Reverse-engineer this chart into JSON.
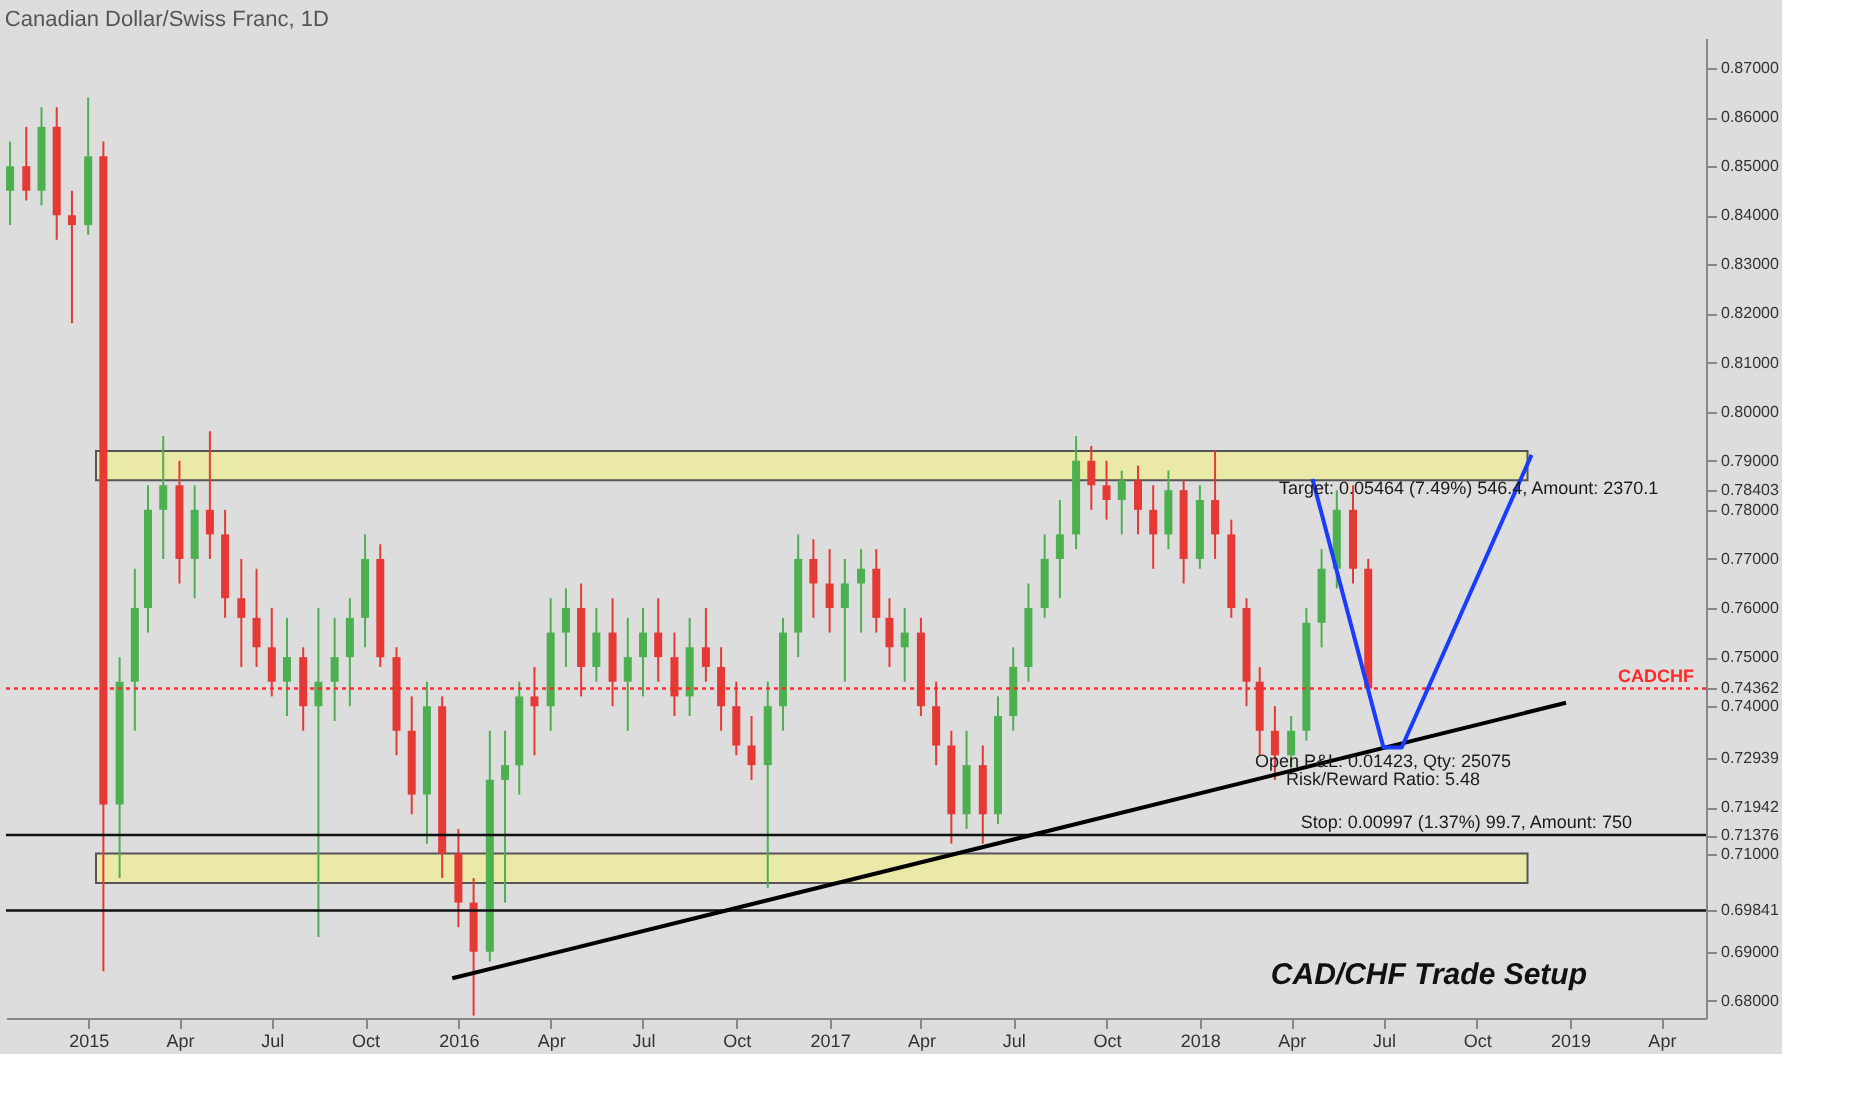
{
  "chart_data": {
    "type": "candlestick",
    "title": "Canadian Dollar/Swiss Franc, 1D",
    "x": [
      "2014-10-16",
      "2014-11-01",
      "2014-11-16",
      "2014-12-01",
      "2014-12-16",
      "2015-01-01",
      "2015-01-16",
      "2015-02-01",
      "2015-02-16",
      "2015-03-01",
      "2015-03-16",
      "2015-04-01",
      "2015-04-16",
      "2015-05-01",
      "2015-05-16",
      "2015-06-01",
      "2015-06-16",
      "2015-07-01",
      "2015-07-16",
      "2015-08-01",
      "2015-08-16",
      "2015-09-01",
      "2015-09-16",
      "2015-10-01",
      "2015-10-16",
      "2015-11-01",
      "2015-11-16",
      "2015-12-01",
      "2015-12-16",
      "2016-01-01",
      "2016-01-16",
      "2016-02-01",
      "2016-02-16",
      "2016-03-01",
      "2016-03-16",
      "2016-04-01",
      "2016-04-16",
      "2016-05-01",
      "2016-05-16",
      "2016-06-01",
      "2016-06-16",
      "2016-07-01",
      "2016-07-16",
      "2016-08-01",
      "2016-08-16",
      "2016-09-01",
      "2016-09-16",
      "2016-10-01",
      "2016-10-16",
      "2016-11-01",
      "2016-11-16",
      "2016-12-01",
      "2016-12-16",
      "2017-01-01",
      "2017-01-16",
      "2017-02-01",
      "2017-02-16",
      "2017-03-01",
      "2017-03-16",
      "2017-04-01",
      "2017-04-16",
      "2017-05-01",
      "2017-05-16",
      "2017-06-01",
      "2017-06-16",
      "2017-07-01",
      "2017-07-16",
      "2017-08-01",
      "2017-08-16",
      "2017-09-01",
      "2017-09-16",
      "2017-10-01",
      "2017-10-16",
      "2017-11-01",
      "2017-11-16",
      "2017-12-01",
      "2017-12-16",
      "2018-01-01",
      "2018-01-16",
      "2018-02-01",
      "2018-02-16",
      "2018-03-01",
      "2018-03-16",
      "2018-04-01",
      "2018-04-16",
      "2018-05-01",
      "2018-05-16",
      "2018-06-01",
      "2018-06-16"
    ],
    "ohlc": [
      [
        0.845,
        0.855,
        0.838,
        0.85
      ],
      [
        0.85,
        0.858,
        0.843,
        0.845
      ],
      [
        0.845,
        0.862,
        0.842,
        0.858
      ],
      [
        0.858,
        0.862,
        0.835,
        0.84
      ],
      [
        0.84,
        0.845,
        0.818,
        0.838
      ],
      [
        0.838,
        0.864,
        0.836,
        0.852
      ],
      [
        0.852,
        0.855,
        0.686,
        0.72
      ],
      [
        0.72,
        0.75,
        0.705,
        0.745
      ],
      [
        0.745,
        0.768,
        0.735,
        0.76
      ],
      [
        0.76,
        0.785,
        0.755,
        0.78
      ],
      [
        0.78,
        0.795,
        0.77,
        0.785
      ],
      [
        0.785,
        0.79,
        0.765,
        0.77
      ],
      [
        0.77,
        0.785,
        0.762,
        0.78
      ],
      [
        0.78,
        0.796,
        0.77,
        0.775
      ],
      [
        0.775,
        0.78,
        0.758,
        0.762
      ],
      [
        0.762,
        0.77,
        0.748,
        0.758
      ],
      [
        0.758,
        0.768,
        0.748,
        0.752
      ],
      [
        0.752,
        0.76,
        0.742,
        0.745
      ],
      [
        0.745,
        0.758,
        0.738,
        0.75
      ],
      [
        0.75,
        0.752,
        0.735,
        0.74
      ],
      [
        0.74,
        0.76,
        0.693,
        0.745
      ],
      [
        0.745,
        0.758,
        0.737,
        0.75
      ],
      [
        0.75,
        0.762,
        0.74,
        0.758
      ],
      [
        0.758,
        0.775,
        0.752,
        0.77
      ],
      [
        0.77,
        0.773,
        0.748,
        0.75
      ],
      [
        0.75,
        0.752,
        0.73,
        0.735
      ],
      [
        0.735,
        0.742,
        0.718,
        0.722
      ],
      [
        0.722,
        0.745,
        0.712,
        0.74
      ],
      [
        0.74,
        0.742,
        0.705,
        0.71
      ],
      [
        0.71,
        0.715,
        0.695,
        0.7
      ],
      [
        0.7,
        0.705,
        0.677,
        0.69
      ],
      [
        0.69,
        0.735,
        0.688,
        0.725
      ],
      [
        0.725,
        0.735,
        0.7,
        0.728
      ],
      [
        0.728,
        0.745,
        0.722,
        0.742
      ],
      [
        0.742,
        0.748,
        0.73,
        0.74
      ],
      [
        0.74,
        0.762,
        0.735,
        0.755
      ],
      [
        0.755,
        0.764,
        0.748,
        0.76
      ],
      [
        0.76,
        0.765,
        0.742,
        0.748
      ],
      [
        0.748,
        0.76,
        0.745,
        0.755
      ],
      [
        0.755,
        0.762,
        0.74,
        0.745
      ],
      [
        0.745,
        0.758,
        0.735,
        0.75
      ],
      [
        0.75,
        0.76,
        0.742,
        0.755
      ],
      [
        0.755,
        0.762,
        0.745,
        0.75
      ],
      [
        0.75,
        0.755,
        0.738,
        0.742
      ],
      [
        0.742,
        0.758,
        0.738,
        0.752
      ],
      [
        0.752,
        0.76,
        0.745,
        0.748
      ],
      [
        0.748,
        0.752,
        0.735,
        0.74
      ],
      [
        0.74,
        0.745,
        0.73,
        0.732
      ],
      [
        0.732,
        0.738,
        0.725,
        0.728
      ],
      [
        0.728,
        0.745,
        0.703,
        0.74
      ],
      [
        0.74,
        0.758,
        0.735,
        0.755
      ],
      [
        0.755,
        0.775,
        0.75,
        0.77
      ],
      [
        0.77,
        0.774,
        0.758,
        0.765
      ],
      [
        0.765,
        0.772,
        0.755,
        0.76
      ],
      [
        0.76,
        0.77,
        0.745,
        0.765
      ],
      [
        0.765,
        0.772,
        0.755,
        0.768
      ],
      [
        0.768,
        0.772,
        0.755,
        0.758
      ],
      [
        0.758,
        0.762,
        0.748,
        0.752
      ],
      [
        0.752,
        0.76,
        0.745,
        0.755
      ],
      [
        0.755,
        0.758,
        0.738,
        0.74
      ],
      [
        0.74,
        0.745,
        0.728,
        0.732
      ],
      [
        0.732,
        0.735,
        0.712,
        0.718
      ],
      [
        0.718,
        0.735,
        0.715,
        0.728
      ],
      [
        0.728,
        0.732,
        0.712,
        0.718
      ],
      [
        0.718,
        0.742,
        0.716,
        0.738
      ],
      [
        0.738,
        0.752,
        0.735,
        0.748
      ],
      [
        0.748,
        0.765,
        0.745,
        0.76
      ],
      [
        0.76,
        0.775,
        0.758,
        0.77
      ],
      [
        0.77,
        0.782,
        0.762,
        0.775
      ],
      [
        0.775,
        0.795,
        0.772,
        0.79
      ],
      [
        0.79,
        0.793,
        0.78,
        0.785
      ],
      [
        0.785,
        0.79,
        0.778,
        0.782
      ],
      [
        0.782,
        0.788,
        0.775,
        0.786
      ],
      [
        0.786,
        0.789,
        0.775,
        0.78
      ],
      [
        0.78,
        0.785,
        0.768,
        0.775
      ],
      [
        0.775,
        0.788,
        0.772,
        0.784
      ],
      [
        0.784,
        0.786,
        0.765,
        0.77
      ],
      [
        0.77,
        0.785,
        0.768,
        0.782
      ],
      [
        0.782,
        0.792,
        0.77,
        0.775
      ],
      [
        0.775,
        0.778,
        0.758,
        0.76
      ],
      [
        0.76,
        0.762,
        0.74,
        0.745
      ],
      [
        0.745,
        0.748,
        0.73,
        0.735
      ],
      [
        0.735,
        0.74,
        0.725,
        0.73
      ],
      [
        0.73,
        0.738,
        0.726,
        0.735
      ],
      [
        0.735,
        0.76,
        0.733,
        0.757
      ],
      [
        0.757,
        0.772,
        0.752,
        0.768
      ],
      [
        0.768,
        0.784,
        0.764,
        0.78
      ],
      [
        0.78,
        0.785,
        0.765,
        0.768
      ],
      [
        0.768,
        0.77,
        0.743,
        0.74362
      ]
    ],
    "colors": [
      "#4caf50",
      "#e53935",
      "#4caf50",
      "#e53935",
      "#e53935",
      "#4caf50",
      "#e53935",
      "#4caf50",
      "#4caf50",
      "#4caf50",
      "#4caf50",
      "#e53935",
      "#4caf50",
      "#e53935",
      "#e53935",
      "#e53935",
      "#e53935",
      "#e53935",
      "#4caf50",
      "#e53935",
      "#4caf50",
      "#4caf50",
      "#4caf50",
      "#4caf50",
      "#e53935",
      "#e53935",
      "#e53935",
      "#4caf50",
      "#e53935",
      "#e53935",
      "#e53935",
      "#4caf50",
      "#4caf50",
      "#4caf50",
      "#e53935",
      "#4caf50",
      "#4caf50",
      "#e53935",
      "#4caf50",
      "#e53935",
      "#4caf50",
      "#4caf50",
      "#e53935",
      "#e53935",
      "#4caf50",
      "#e53935",
      "#e53935",
      "#e53935",
      "#e53935",
      "#4caf50",
      "#4caf50",
      "#4caf50",
      "#e53935",
      "#e53935",
      "#4caf50",
      "#4caf50",
      "#e53935",
      "#e53935",
      "#4caf50",
      "#e53935",
      "#e53935",
      "#e53935",
      "#4caf50",
      "#e53935",
      "#4caf50",
      "#4caf50",
      "#4caf50",
      "#4caf50",
      "#4caf50",
      "#4caf50",
      "#e53935",
      "#e53935",
      "#4caf50",
      "#e53935",
      "#e53935",
      "#4caf50",
      "#e53935",
      "#4caf50",
      "#e53935",
      "#e53935",
      "#e53935",
      "#e53935",
      "#e53935",
      "#4caf50",
      "#4caf50",
      "#4caf50",
      "#4caf50",
      "#e53935",
      "#e53935"
    ],
    "series": [
      {
        "type": "line",
        "color": "#000000",
        "x": [
          "2015-12-26",
          "2018-12-28"
        ],
        "values": [
          0.6846,
          0.7407
        ]
      },
      {
        "type": "line",
        "color": "#1a3cff",
        "x": [
          "2018-04-22",
          "2018-07-01",
          "2018-07-19",
          "2018-11-24"
        ],
        "values": [
          0.7863,
          0.7316,
          0.7316,
          0.7912
        ]
      }
    ],
    "bands": [
      {
        "axis": "y",
        "from": 0.786,
        "to": 0.792,
        "color": "#ebe9a8"
      },
      {
        "axis": "y",
        "from": 0.704,
        "to": 0.71,
        "color": "#ebe9a8"
      }
    ],
    "ref_lines": [
      {
        "axis": "y",
        "value": 0.74362,
        "label": "CADCHF",
        "color": "#ff2a2a",
        "line_style": "dotted"
      },
      {
        "axis": "y",
        "value": 0.71376,
        "color": "#111111",
        "line_style": "solid"
      },
      {
        "axis": "y",
        "value": 0.69841,
        "color": "#111111",
        "line_style": "solid"
      }
    ],
    "annotations": [
      {
        "text": "Target: 0.05464 (7.49%) 546.4, Amount: 2370.1",
        "x": "2018-09-23",
        "y": 0.7845
      },
      "Open P&L: 0.01423, Qty: 25075",
      "Risk/Reward Ratio: 5.48",
      "Stop: 0.00997 (1.37%) 99.7, Amount: 750",
      "CAD/CHF Trade Setup"
    ],
    "xlim": [
      "2014-10-12",
      "2019-05-15"
    ],
    "xticks": [
      {
        "value": "2015-01-01",
        "label": "2015"
      },
      {
        "value": "2015-04-01",
        "label": "Apr"
      },
      {
        "value": "2015-07-01",
        "label": "Jul"
      },
      {
        "value": "2015-10-01",
        "label": "Oct"
      },
      {
        "value": "2016-01-01",
        "label": "2016"
      },
      {
        "value": "2016-04-01",
        "label": "Apr"
      },
      {
        "value": "2016-07-01",
        "label": "Jul"
      },
      {
        "value": "2016-10-01",
        "label": "Oct"
      },
      {
        "value": "2017-01-01",
        "label": "2017"
      },
      {
        "value": "2017-04-01",
        "label": "Apr"
      },
      {
        "value": "2017-07-01",
        "label": "Jul"
      },
      {
        "value": "2017-10-01",
        "label": "Oct"
      },
      {
        "value": "2018-01-01",
        "label": "2018"
      },
      {
        "value": "2018-04-01",
        "label": "Apr"
      },
      {
        "value": "2018-07-01",
        "label": "Jul"
      },
      {
        "value": "2018-10-01",
        "label": "Oct"
      },
      {
        "value": "2019-01-01",
        "label": "2019"
      },
      {
        "value": "2019-04-01",
        "label": "Apr"
      }
    ],
    "ylim": [
      0.6765,
      0.8761
    ],
    "yticks": [
      {
        "value": 0.68,
        "label": "0.68000"
      },
      {
        "value": 0.69,
        "label": "0.69000"
      },
      0.69841,
      {
        "value": 0.71,
        "label": "0.71000"
      },
      0.71376,
      0.71942,
      0.72939,
      {
        "value": 0.74,
        "label": "0.74000"
      },
      0.74362,
      {
        "value": 0.75,
        "label": "0.75000"
      },
      {
        "value": 0.76,
        "label": "0.76000"
      },
      {
        "value": 0.77,
        "label": "0.77000"
      },
      {
        "value": 0.78,
        "label": "0.78000"
      },
      0.78403,
      {
        "value": 0.79,
        "label": "0.79000"
      },
      {
        "value": 0.8,
        "label": "0.80000"
      },
      {
        "value": 0.81,
        "label": "0.81000"
      },
      {
        "value": 0.82,
        "label": "0.82000"
      },
      {
        "value": 0.83,
        "label": "0.83000"
      },
      {
        "value": 0.84,
        "label": "0.84000"
      },
      {
        "value": 0.85,
        "label": "0.85000"
      },
      {
        "value": 0.86,
        "label": "0.86000"
      },
      {
        "value": 0.87,
        "label": "0.87000"
      }
    ],
    "grid": false
  }
}
